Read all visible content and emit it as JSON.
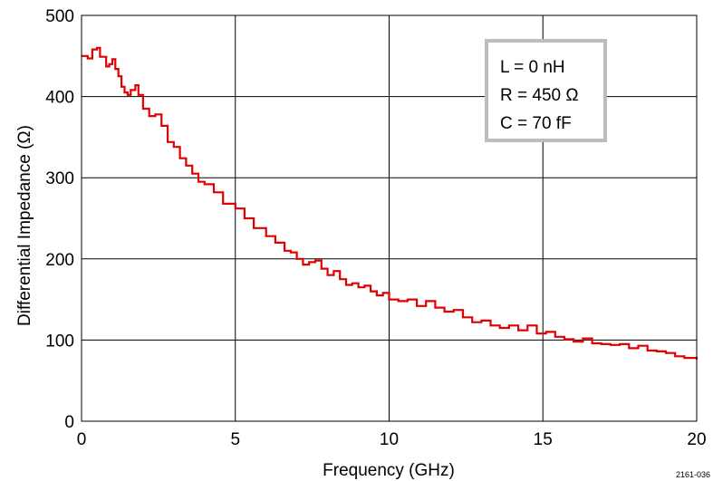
{
  "chart_data": {
    "type": "line",
    "title": "",
    "xlabel": "Frequency (GHz)",
    "ylabel": "Differential Impedance (Ω)",
    "xlim": [
      0,
      20
    ],
    "ylim": [
      0,
      500
    ],
    "x_ticks": [
      0,
      5,
      10,
      15,
      20
    ],
    "y_ticks": [
      0,
      100,
      200,
      300,
      400,
      500
    ],
    "grid": true,
    "legend": "none",
    "series": [
      {
        "color": "#e00000",
        "x": [
          0,
          0.2,
          0.35,
          0.5,
          0.6,
          0.8,
          0.9,
          1.0,
          1.1,
          1.2,
          1.3,
          1.4,
          1.5,
          1.6,
          1.75,
          1.85,
          2.0,
          2.2,
          2.4,
          2.6,
          2.8,
          3.0,
          3.2,
          3.4,
          3.6,
          3.8,
          4.0,
          4.3,
          4.6,
          5.0,
          5.3,
          5.6,
          6.0,
          6.3,
          6.6,
          6.8,
          7.0,
          7.2,
          7.4,
          7.6,
          7.8,
          8.0,
          8.2,
          8.4,
          8.6,
          8.8,
          9.0,
          9.2,
          9.4,
          9.6,
          9.8,
          10.0,
          10.3,
          10.6,
          10.9,
          11.2,
          11.5,
          11.8,
          12.1,
          12.4,
          12.7,
          13.0,
          13.3,
          13.6,
          13.9,
          14.2,
          14.5,
          14.8,
          15.1,
          15.4,
          15.7,
          16.0,
          16.3,
          16.6,
          16.9,
          17.2,
          17.5,
          17.8,
          18.1,
          18.4,
          18.7,
          19.0,
          19.3,
          19.6,
          20.0
        ],
        "y": [
          450,
          447,
          458,
          460,
          449,
          437,
          440,
          446,
          434,
          425,
          412,
          405,
          402,
          408,
          414,
          402,
          385,
          376,
          378,
          364,
          344,
          338,
          324,
          315,
          305,
          295,
          292,
          282,
          268,
          262,
          250,
          238,
          228,
          220,
          210,
          208,
          200,
          193,
          196,
          198,
          188,
          180,
          185,
          175,
          168,
          170,
          165,
          167,
          160,
          155,
          158,
          150,
          148,
          150,
          142,
          148,
          140,
          135,
          137,
          128,
          122,
          124,
          118,
          115,
          118,
          112,
          118,
          108,
          110,
          104,
          101,
          98,
          102,
          96,
          95,
          94,
          95,
          90,
          93,
          87,
          86,
          84,
          80,
          78,
          76
        ]
      }
    ],
    "annotations": [
      "L = 0 nH",
      "R = 450 Ω",
      "C = 70 fF"
    ],
    "figure_id": "2161-036"
  }
}
